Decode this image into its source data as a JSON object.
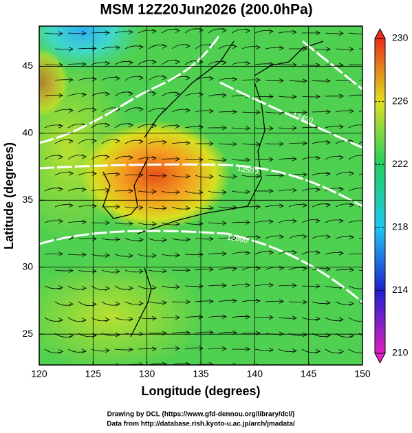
{
  "chart_data": {
    "type": "map",
    "title": "MSM 12Z20Jun2026 (200.0hPa)",
    "x_label": "Longitude (degrees)",
    "y_label": "Latitude  (degrees)",
    "xlim": [
      120,
      150
    ],
    "xticks": [
      120,
      125,
      130,
      135,
      140,
      145,
      150
    ],
    "ylim": [
      22.7,
      48.0
    ],
    "yticks": [
      25,
      30,
      35,
      40,
      45
    ],
    "grid": true,
    "colorbar": {
      "lim": [
        210,
        230
      ],
      "ticks": [
        210,
        214,
        218,
        222,
        226,
        230
      ]
    },
    "contour_labels": [
      "12400",
      "12500",
      "12600"
    ]
  },
  "footer": [
    "Drawing by DCL (https://www.gfd-dennou.org/library/dcl/)",
    "Data from http://database.rish.kyoto-u.ac.jp/arch/jmadata/"
  ]
}
